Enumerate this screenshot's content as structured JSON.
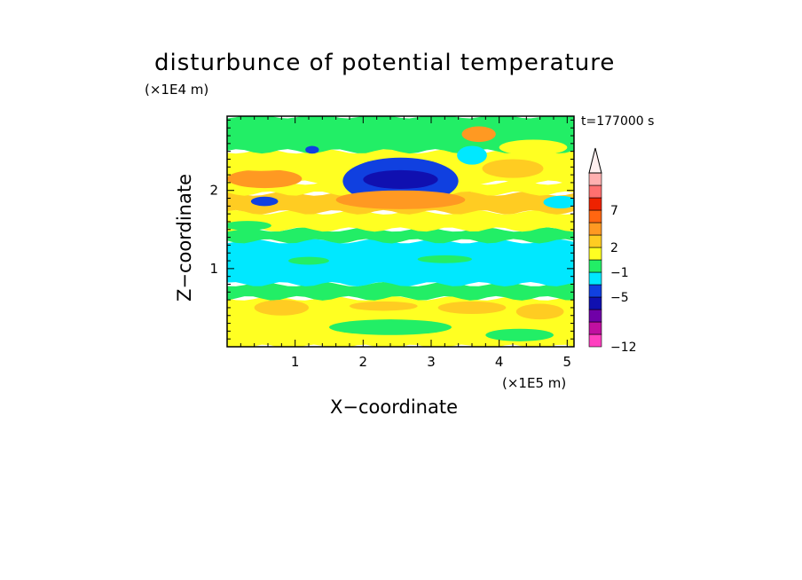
{
  "chart_data": {
    "type": "heatmap",
    "title": "disturbunce of potential temperature",
    "xlabel": "X−coordinate",
    "ylabel": "Z−coordinate",
    "x_unit": "(×1E5 m)",
    "y_unit": "(×1E4 m)",
    "annotation": "t=177000 s",
    "xlim": [
      0,
      5.1
    ],
    "ylim": [
      0,
      2.95
    ],
    "x_ticks": [
      "1",
      "2",
      "3",
      "4",
      "5"
    ],
    "y_ticks": [
      "1",
      "2"
    ],
    "colorbar": {
      "tick_labels": [
        "7",
        "2",
        "−1",
        "−5",
        "−12"
      ],
      "levels": [
        {
          "color": "#ff40c0"
        },
        {
          "color": "#c010a0"
        },
        {
          "color": "#7000a8"
        },
        {
          "color": "#1010b0"
        },
        {
          "color": "#1040e0"
        },
        {
          "color": "#00e8ff"
        },
        {
          "color": "#22ee66"
        },
        {
          "color": "#ffff22"
        },
        {
          "color": "#ffcc22"
        },
        {
          "color": "#ff9922"
        },
        {
          "color": "#ff6611"
        },
        {
          "color": "#ee2200"
        },
        {
          "color": "#ff7070"
        },
        {
          "color": "#ffb0b0"
        }
      ]
    },
    "grid": false,
    "bands": [
      {
        "z": [
          0.0,
          0.62
        ],
        "color": "#ffff22"
      },
      {
        "z": [
          0.62,
          0.8
        ],
        "color": "#22ee66"
      },
      {
        "z": [
          0.8,
          1.35
        ],
        "color": "#00e8ff"
      },
      {
        "z": [
          1.35,
          1.5
        ],
        "color": "#22ee66"
      },
      {
        "z": [
          1.5,
          1.72
        ],
        "color": "#ffff22"
      },
      {
        "z": [
          1.72,
          1.96
        ],
        "color": "#ffcc22"
      },
      {
        "z": [
          1.96,
          2.1
        ],
        "color": "#ffff22"
      },
      {
        "z": [
          2.1,
          2.5
        ],
        "color": "#ffff22"
      },
      {
        "z": [
          2.5,
          2.95
        ],
        "color": "#22ee66"
      }
    ],
    "features": [
      {
        "x": 2.55,
        "z": 2.12,
        "rx": 0.85,
        "rz": 0.3,
        "color": "#1040e0"
      },
      {
        "x": 2.55,
        "z": 2.14,
        "rx": 0.55,
        "rz": 0.12,
        "color": "#1010b0"
      },
      {
        "x": 2.55,
        "z": 1.88,
        "rx": 0.95,
        "rz": 0.12,
        "color": "#ff9922"
      },
      {
        "x": 0.55,
        "z": 2.15,
        "rx": 0.55,
        "rz": 0.12,
        "color": "#ff9922"
      },
      {
        "x": 0.55,
        "z": 1.86,
        "rx": 0.2,
        "rz": 0.06,
        "color": "#1040e0"
      },
      {
        "x": 1.25,
        "z": 2.52,
        "rx": 0.1,
        "rz": 0.05,
        "color": "#1040e0"
      },
      {
        "x": 3.7,
        "z": 2.72,
        "rx": 0.25,
        "rz": 0.1,
        "color": "#ff9922"
      },
      {
        "x": 3.6,
        "z": 2.45,
        "rx": 0.22,
        "rz": 0.12,
        "color": "#00e8ff"
      },
      {
        "x": 4.2,
        "z": 2.28,
        "rx": 0.45,
        "rz": 0.12,
        "color": "#ffcc22"
      },
      {
        "x": 4.9,
        "z": 1.85,
        "rx": 0.25,
        "rz": 0.08,
        "color": "#00e8ff"
      },
      {
        "x": 0.8,
        "z": 0.5,
        "rx": 0.4,
        "rz": 0.1,
        "color": "#ffcc22"
      },
      {
        "x": 3.6,
        "z": 0.5,
        "rx": 0.5,
        "rz": 0.08,
        "color": "#ffcc22"
      },
      {
        "x": 4.6,
        "z": 0.45,
        "rx": 0.35,
        "rz": 0.1,
        "color": "#ffcc22"
      },
      {
        "x": 2.3,
        "z": 0.52,
        "rx": 0.5,
        "rz": 0.06,
        "color": "#ffcc22"
      },
      {
        "x": 2.4,
        "z": 0.25,
        "rx": 0.9,
        "rz": 0.1,
        "color": "#22ee66"
      },
      {
        "x": 4.3,
        "z": 0.15,
        "rx": 0.5,
        "rz": 0.08,
        "color": "#22ee66"
      },
      {
        "x": 1.2,
        "z": 1.1,
        "rx": 0.3,
        "rz": 0.05,
        "color": "#22ee66"
      },
      {
        "x": 3.2,
        "z": 1.12,
        "rx": 0.4,
        "rz": 0.05,
        "color": "#22ee66"
      },
      {
        "x": 0.5,
        "z": 2.35,
        "rx": 0.6,
        "rz": 0.1,
        "color": "#ffff22"
      },
      {
        "x": 4.5,
        "z": 2.55,
        "rx": 0.5,
        "rz": 0.1,
        "color": "#ffff22"
      },
      {
        "x": 0.3,
        "z": 1.55,
        "rx": 0.35,
        "rz": 0.06,
        "color": "#22ee66"
      }
    ]
  }
}
